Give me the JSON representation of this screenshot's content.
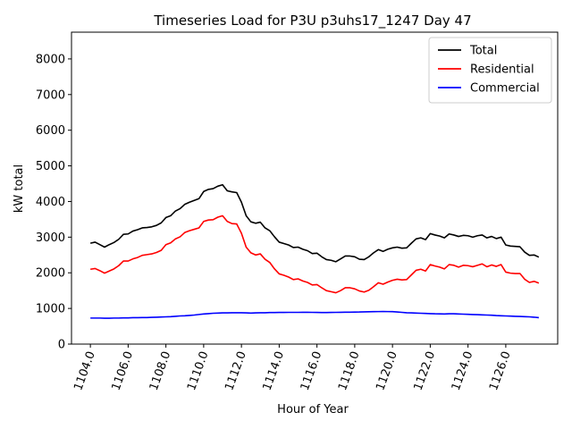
{
  "chart_data": {
    "type": "line",
    "title": "Timeseries Load for P3U p3uhs17_1247  Day 47",
    "xlabel": "Hour of Year",
    "ylabel": "kW total",
    "xlim": [
      1103.0,
      1128.75
    ],
    "ylim": [
      0,
      8750
    ],
    "xticks": [
      1104,
      1106,
      1108,
      1110,
      1112,
      1114,
      1116,
      1118,
      1120,
      1122,
      1124,
      1126
    ],
    "xtick_labels": [
      "1104.0",
      "1106.0",
      "1108.0",
      "1110.0",
      "1112.0",
      "1114.0",
      "1116.0",
      "1118.0",
      "1120.0",
      "1122.0",
      "1124.0",
      "1126.0"
    ],
    "yticks": [
      0,
      1000,
      2000,
      3000,
      4000,
      5000,
      6000,
      7000,
      8000
    ],
    "ytick_labels": [
      "0",
      "1000",
      "2000",
      "3000",
      "4000",
      "5000",
      "6000",
      "7000",
      "8000"
    ],
    "x_start": 1104.0,
    "x_step": 0.25,
    "legend_position": "top-right",
    "grid": false,
    "series": [
      {
        "name": "Total",
        "color": "#000000",
        "values": [
          2830,
          2860,
          2790,
          2720,
          2790,
          2850,
          2940,
          3080,
          3090,
          3170,
          3210,
          3260,
          3270,
          3290,
          3330,
          3400,
          3550,
          3600,
          3730,
          3800,
          3920,
          3980,
          4030,
          4080,
          4280,
          4340,
          4360,
          4430,
          4470,
          4300,
          4270,
          4250,
          3980,
          3600,
          3430,
          3390,
          3420,
          3260,
          3180,
          3010,
          2860,
          2820,
          2780,
          2710,
          2720,
          2660,
          2620,
          2540,
          2550,
          2450,
          2370,
          2350,
          2310,
          2390,
          2470,
          2470,
          2450,
          2380,
          2370,
          2450,
          2560,
          2650,
          2600,
          2660,
          2700,
          2720,
          2690,
          2700,
          2830,
          2950,
          2980,
          2930,
          3100,
          3060,
          3030,
          2980,
          3090,
          3060,
          3020,
          3050,
          3040,
          3000,
          3040,
          3060,
          2980,
          3020,
          2960,
          3000,
          2780,
          2750,
          2740,
          2730,
          2580,
          2490,
          2500,
          2440
        ]
      },
      {
        "name": "Residential",
        "color": "#ff0000",
        "values": [
          2100,
          2120,
          2060,
          1990,
          2050,
          2110,
          2200,
          2330,
          2330,
          2390,
          2430,
          2490,
          2510,
          2530,
          2570,
          2630,
          2790,
          2840,
          2950,
          3010,
          3130,
          3180,
          3220,
          3260,
          3440,
          3480,
          3490,
          3560,
          3600,
          3440,
          3380,
          3370,
          3110,
          2720,
          2560,
          2500,
          2530,
          2380,
          2290,
          2110,
          1970,
          1930,
          1880,
          1810,
          1830,
          1770,
          1730,
          1660,
          1670,
          1580,
          1500,
          1470,
          1440,
          1500,
          1580,
          1580,
          1550,
          1490,
          1460,
          1510,
          1610,
          1720,
          1680,
          1740,
          1790,
          1820,
          1800,
          1810,
          1940,
          2070,
          2100,
          2050,
          2230,
          2190,
          2160,
          2110,
          2230,
          2210,
          2160,
          2210,
          2200,
          2170,
          2210,
          2250,
          2170,
          2220,
          2180,
          2230,
          2020,
          1990,
          1980,
          1980,
          1820,
          1730,
          1760,
          1710
        ]
      },
      {
        "name": "Commercial",
        "color": "#0000ff",
        "values": [
          730,
          730,
          730,
          725,
          725,
          730,
          730,
          735,
          735,
          740,
          740,
          745,
          745,
          750,
          755,
          760,
          765,
          770,
          780,
          790,
          795,
          805,
          815,
          830,
          845,
          855,
          865,
          870,
          875,
          875,
          880,
          880,
          880,
          875,
          870,
          875,
          878,
          880,
          885,
          885,
          888,
          888,
          890,
          890,
          890,
          892,
          892,
          890,
          888,
          885,
          885,
          888,
          890,
          892,
          895,
          895,
          898,
          900,
          905,
          908,
          910,
          912,
          915,
          912,
          910,
          900,
          890,
          880,
          875,
          870,
          865,
          860,
          855,
          850,
          848,
          845,
          850,
          850,
          845,
          840,
          835,
          830,
          825,
          820,
          815,
          810,
          800,
          795,
          790,
          785,
          780,
          775,
          770,
          765,
          755,
          740
        ]
      }
    ]
  }
}
